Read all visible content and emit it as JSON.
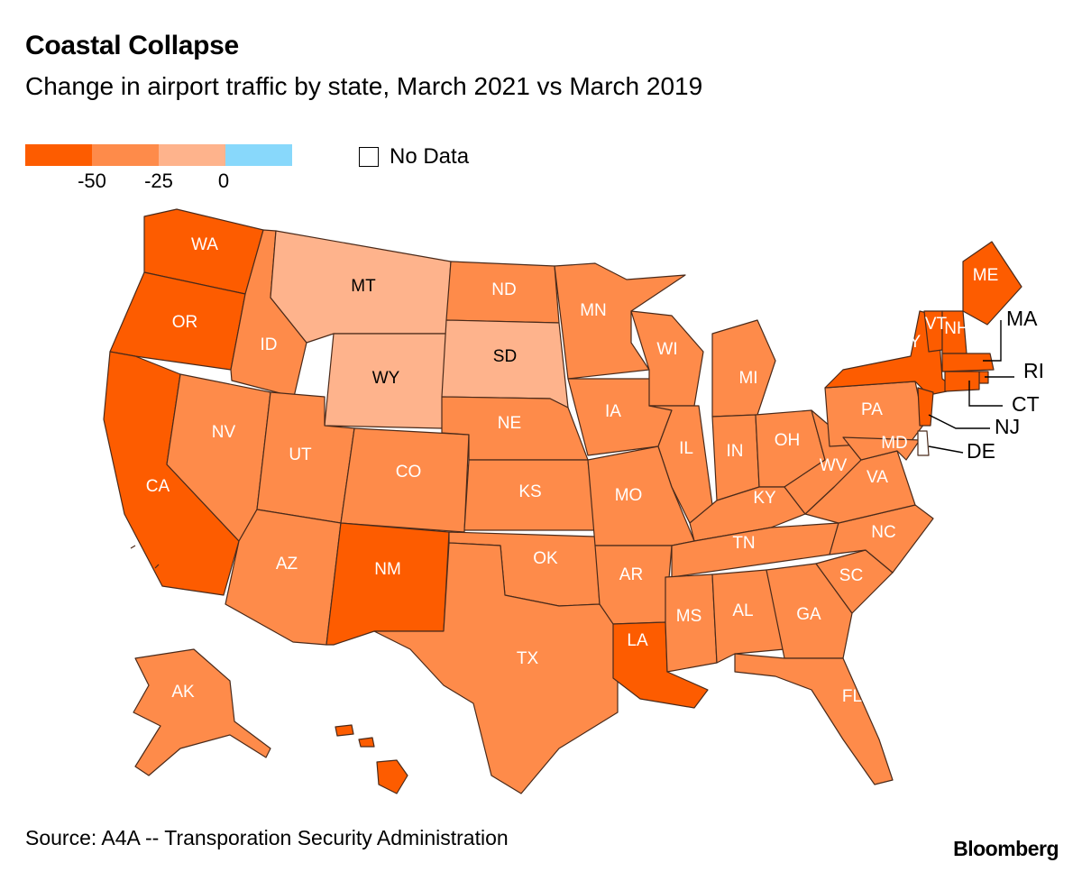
{
  "title": "Coastal Collapse",
  "subtitle": "Change in airport traffic by state, March 2021 vs March 2019",
  "legend": {
    "colors": [
      "#fd5c00",
      "#fe8b4a",
      "#feb38c",
      "#88d8fb"
    ],
    "ticks": [
      "-50",
      "-25",
      "0"
    ],
    "no_data_label": "No Data"
  },
  "source": "Source: A4A -- Transporation Security Administration",
  "brand": "Bloomberg",
  "states": [
    {
      "abbr": "WA",
      "bin": "<-50"
    },
    {
      "abbr": "OR",
      "bin": "<-50"
    },
    {
      "abbr": "CA",
      "bin": "<-50"
    },
    {
      "abbr": "ID",
      "bin": "-50 to -25"
    },
    {
      "abbr": "NV",
      "bin": "-50 to -25"
    },
    {
      "abbr": "MT",
      "bin": "-25 to 0"
    },
    {
      "abbr": "WY",
      "bin": "-25 to 0"
    },
    {
      "abbr": "UT",
      "bin": "-50 to -25"
    },
    {
      "abbr": "AZ",
      "bin": "-50 to -25"
    },
    {
      "abbr": "CO",
      "bin": "-50 to -25"
    },
    {
      "abbr": "NM",
      "bin": "<-50"
    },
    {
      "abbr": "ND",
      "bin": "-50 to -25"
    },
    {
      "abbr": "SD",
      "bin": "-25 to 0"
    },
    {
      "abbr": "NE",
      "bin": "-50 to -25"
    },
    {
      "abbr": "KS",
      "bin": "-50 to -25"
    },
    {
      "abbr": "OK",
      "bin": "-50 to -25"
    },
    {
      "abbr": "TX",
      "bin": "-50 to -25"
    },
    {
      "abbr": "MN",
      "bin": "-50 to -25"
    },
    {
      "abbr": "IA",
      "bin": "-50 to -25"
    },
    {
      "abbr": "MO",
      "bin": "-50 to -25"
    },
    {
      "abbr": "AR",
      "bin": "-50 to -25"
    },
    {
      "abbr": "LA",
      "bin": "<-50"
    },
    {
      "abbr": "WI",
      "bin": "-50 to -25"
    },
    {
      "abbr": "IL",
      "bin": "-50 to -25"
    },
    {
      "abbr": "MI",
      "bin": "-50 to -25"
    },
    {
      "abbr": "IN",
      "bin": "-50 to -25"
    },
    {
      "abbr": "OH",
      "bin": "-50 to -25"
    },
    {
      "abbr": "KY",
      "bin": "-50 to -25"
    },
    {
      "abbr": "TN",
      "bin": "-50 to -25"
    },
    {
      "abbr": "MS",
      "bin": "-50 to -25"
    },
    {
      "abbr": "AL",
      "bin": "-50 to -25"
    },
    {
      "abbr": "GA",
      "bin": "-50 to -25"
    },
    {
      "abbr": "FL",
      "bin": "-50 to -25"
    },
    {
      "abbr": "SC",
      "bin": "-50 to -25"
    },
    {
      "abbr": "NC",
      "bin": "-50 to -25"
    },
    {
      "abbr": "VA",
      "bin": "-50 to -25"
    },
    {
      "abbr": "WV",
      "bin": "-50 to -25"
    },
    {
      "abbr": "PA",
      "bin": "-50 to -25"
    },
    {
      "abbr": "MD",
      "bin": "-50 to -25"
    },
    {
      "abbr": "NY",
      "bin": "<-50"
    },
    {
      "abbr": "VT",
      "bin": "<-50"
    },
    {
      "abbr": "NH",
      "bin": "<-50"
    },
    {
      "abbr": "ME",
      "bin": "<-50"
    },
    {
      "abbr": "MA",
      "bin": "<-50"
    },
    {
      "abbr": "RI",
      "bin": "<-50"
    },
    {
      "abbr": "CT",
      "bin": "<-50"
    },
    {
      "abbr": "NJ",
      "bin": "<-50"
    },
    {
      "abbr": "DE",
      "bin": "No Data"
    },
    {
      "abbr": "AK",
      "bin": "-50 to -25"
    },
    {
      "abbr": "HI",
      "bin": "<-50"
    }
  ]
}
